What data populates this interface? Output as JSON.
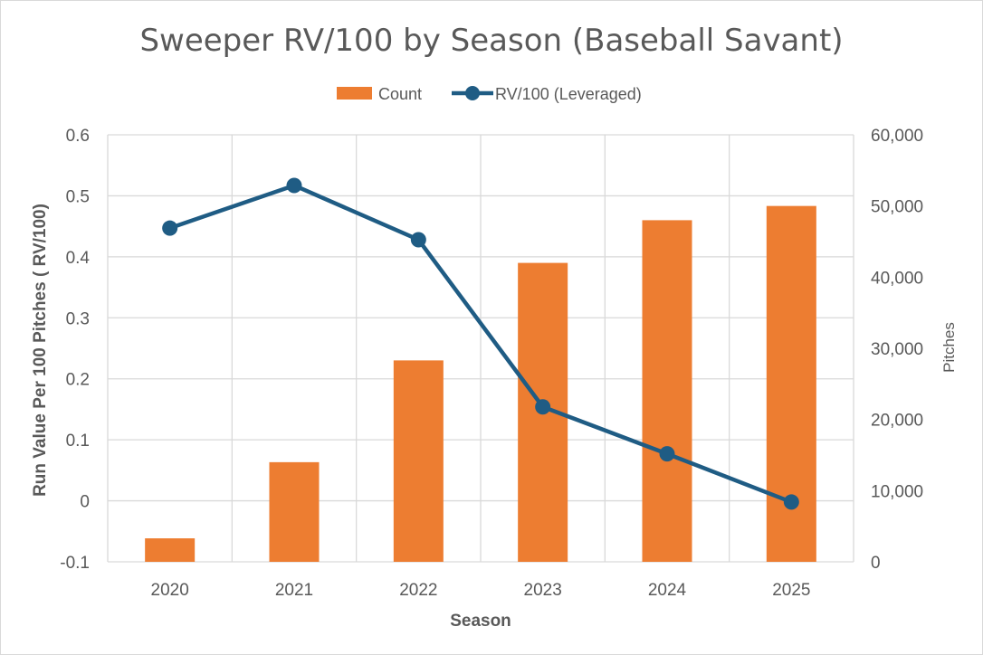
{
  "colors": {
    "bar": "#ED7D31",
    "line": "#1F5C84",
    "grid": "#D9D9D9",
    "text": "#595959"
  },
  "chart_data": {
    "type": "bar+line",
    "title": "Sweeper RV/100 by Season (Baseball Savant)",
    "xlabel": "Season",
    "ylabel": "Run Value Per 100 Pitches ( RV/100)",
    "y2label": "Pitches",
    "categories": [
      "2020",
      "2021",
      "2022",
      "2023",
      "2024",
      "2025"
    ],
    "ylim": [
      -0.1,
      0.6
    ],
    "y_ticks": [
      -0.1,
      0,
      0.1,
      0.2,
      0.3,
      0.4,
      0.5,
      0.6
    ],
    "y_tick_labels": [
      "-0.1",
      "0",
      "0.1",
      "0.2",
      "0.3",
      "0.4",
      "0.5",
      "0.6"
    ],
    "y2lim": [
      0,
      60000
    ],
    "y2_ticks": [
      0,
      10000,
      20000,
      30000,
      40000,
      50000,
      60000
    ],
    "y2_tick_labels": [
      "0",
      "10,000",
      "20,000",
      "30,000",
      "40,000",
      "50,000",
      "60,000"
    ],
    "legend_position": "top",
    "series": [
      {
        "name": "Count",
        "kind": "bar",
        "axis": "right",
        "values": [
          3300,
          14000,
          28300,
          42000,
          48000,
          50000
        ]
      },
      {
        "name": "RV/100 (Leveraged)",
        "kind": "line",
        "axis": "left",
        "values": [
          0.447,
          0.517,
          0.428,
          0.154,
          0.077,
          -0.002
        ]
      }
    ]
  }
}
